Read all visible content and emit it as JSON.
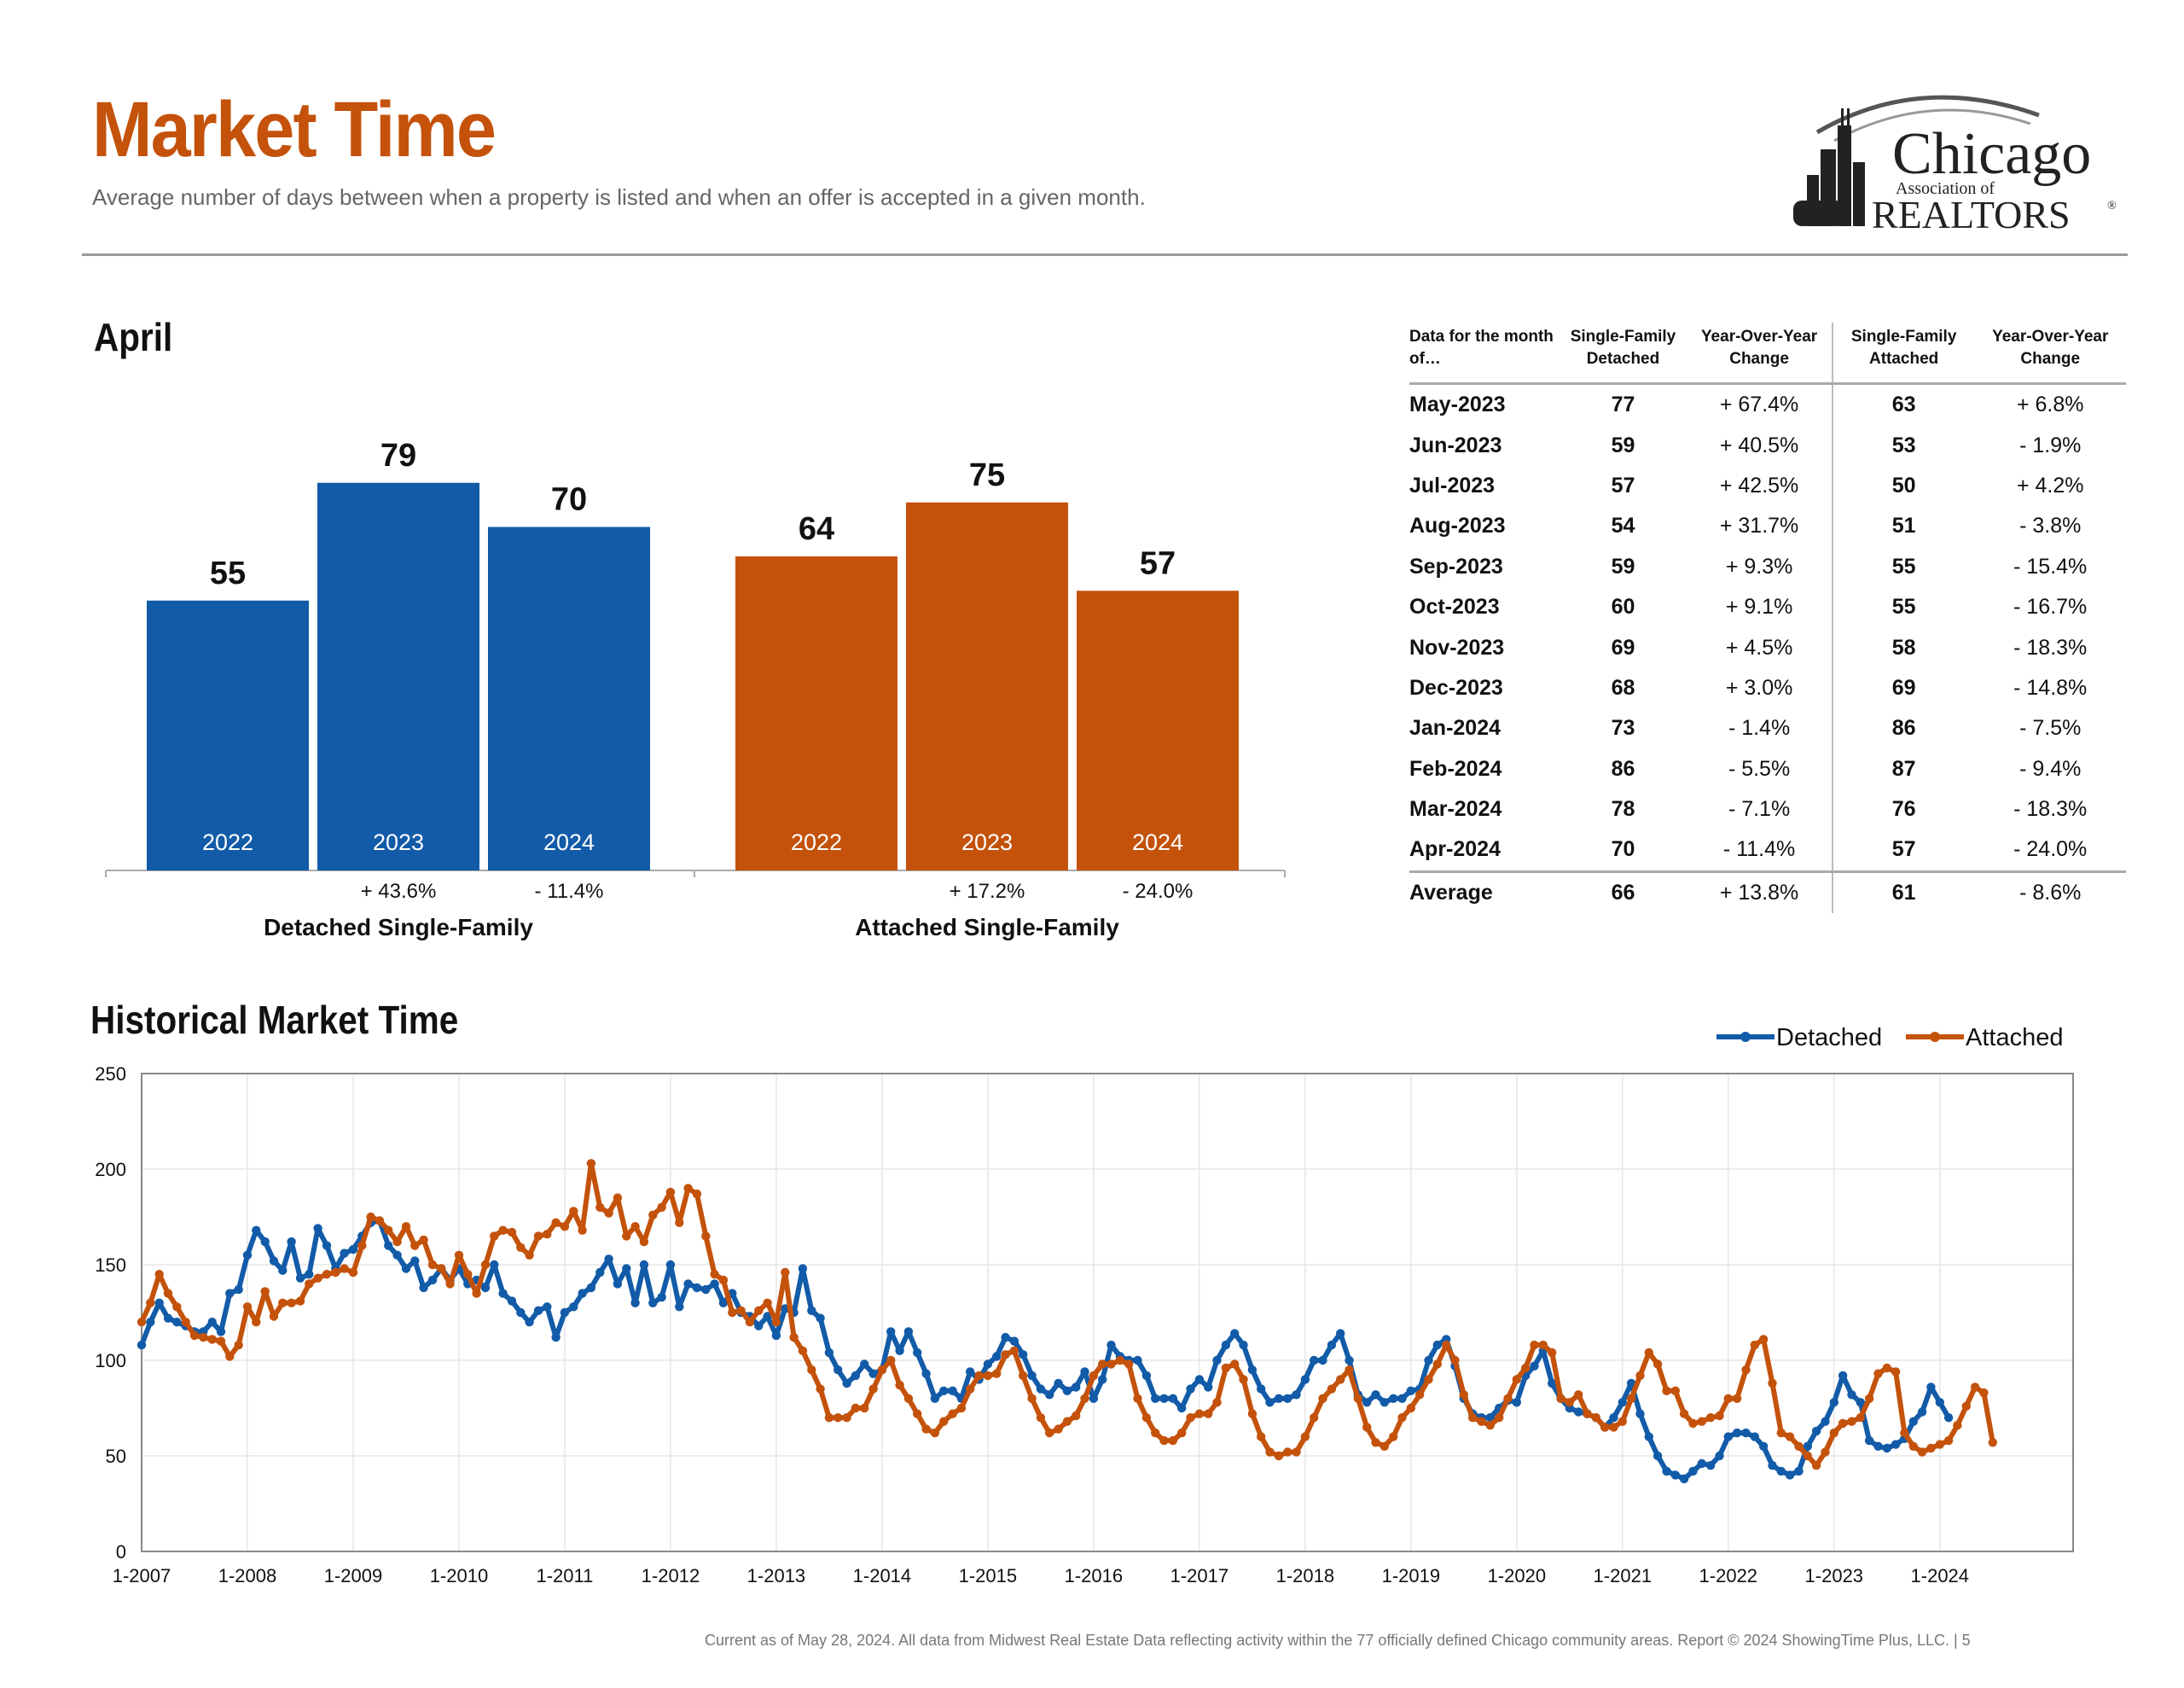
{
  "header": {
    "title": "Market Time",
    "subtitle": "Average number of days between when a property is listed and when an offer is accepted in a given month.",
    "logo_line1": "Chicago",
    "logo_line2": "Association of",
    "logo_line3": "REALTORS",
    "logo_mark": "®"
  },
  "april_heading": "April",
  "historical_heading": "Historical Market Time",
  "colors": {
    "detached": "#125ba8",
    "attached": "#c4520b",
    "title": "#c4520b"
  },
  "chart_data": [
    {
      "type": "bar",
      "groups": [
        {
          "name": "Detached Single-Family",
          "years": [
            "2022",
            "2023",
            "2024"
          ],
          "values": [
            55,
            79,
            70
          ],
          "changes": [
            "",
            "+ 43.6%",
            "- 11.4%"
          ]
        },
        {
          "name": "Attached Single-Family",
          "years": [
            "2022",
            "2023",
            "2024"
          ],
          "values": [
            64,
            75,
            57
          ],
          "changes": [
            "",
            "+ 17.2%",
            "- 24.0%"
          ]
        }
      ],
      "ylim": [
        0,
        100
      ]
    },
    {
      "type": "table",
      "columns": [
        "Data for the month of…",
        "Single-Family Detached",
        "Year-Over-Year Change",
        "Single-Family Attached",
        "Year-Over-Year Change"
      ],
      "rows": [
        [
          "May-2023",
          "77",
          "+ 67.4%",
          "63",
          "+ 6.8%"
        ],
        [
          "Jun-2023",
          "59",
          "+ 40.5%",
          "53",
          "- 1.9%"
        ],
        [
          "Jul-2023",
          "57",
          "+ 42.5%",
          "50",
          "+ 4.2%"
        ],
        [
          "Aug-2023",
          "54",
          "+ 31.7%",
          "51",
          "- 3.8%"
        ],
        [
          "Sep-2023",
          "59",
          "+ 9.3%",
          "55",
          "- 15.4%"
        ],
        [
          "Oct-2023",
          "60",
          "+ 9.1%",
          "55",
          "- 16.7%"
        ],
        [
          "Nov-2023",
          "69",
          "+ 4.5%",
          "58",
          "- 18.3%"
        ],
        [
          "Dec-2023",
          "68",
          "+ 3.0%",
          "69",
          "- 14.8%"
        ],
        [
          "Jan-2024",
          "73",
          "- 1.4%",
          "86",
          "- 7.5%"
        ],
        [
          "Feb-2024",
          "86",
          "- 5.5%",
          "87",
          "- 9.4%"
        ],
        [
          "Mar-2024",
          "78",
          "- 7.1%",
          "76",
          "- 18.3%"
        ],
        [
          "Apr-2024",
          "70",
          "- 11.4%",
          "57",
          "- 24.0%"
        ]
      ],
      "average": [
        "Average",
        "66",
        "+ 13.8%",
        "61",
        "- 8.6%"
      ]
    },
    {
      "type": "line",
      "x_start": "1-2007",
      "x_ticks": [
        "1-2007",
        "1-2008",
        "1-2009",
        "1-2010",
        "1-2011",
        "1-2012",
        "1-2013",
        "1-2014",
        "1-2015",
        "1-2016",
        "1-2017",
        "1-2018",
        "1-2019",
        "1-2020",
        "1-2021",
        "1-2022",
        "1-2023",
        "1-2024"
      ],
      "y_ticks": [
        0,
        50,
        100,
        150,
        200,
        250
      ],
      "ylim": [
        0,
        250
      ],
      "legend_position": "top-right",
      "series": [
        {
          "name": "Detached",
          "values": [
            108,
            120,
            130,
            122,
            120,
            118,
            115,
            115,
            120,
            115,
            135,
            137,
            155,
            168,
            162,
            152,
            147,
            162,
            143,
            145,
            169,
            160,
            148,
            156,
            158,
            165,
            172,
            173,
            160,
            155,
            148,
            152,
            138,
            142,
            148,
            142,
            148,
            140,
            142,
            138,
            150,
            135,
            131,
            125,
            120,
            126,
            128,
            112,
            125,
            128,
            135,
            138,
            146,
            153,
            140,
            148,
            130,
            150,
            130,
            133,
            150,
            128,
            140,
            138,
            137,
            140,
            130,
            135,
            125,
            123,
            118,
            123,
            113,
            127,
            125,
            148,
            126,
            122,
            104,
            95,
            88,
            92,
            98,
            93,
            95,
            115,
            105,
            115,
            104,
            93,
            80,
            84,
            84,
            80,
            94,
            90,
            98,
            102,
            112,
            110,
            103,
            92,
            85,
            82,
            88,
            84,
            86,
            94,
            80,
            90,
            108,
            102,
            100,
            100,
            92,
            80,
            80,
            80,
            75,
            85,
            90,
            86,
            100,
            108,
            114,
            108,
            95,
            85,
            78,
            80,
            80,
            82,
            90,
            100,
            100,
            108,
            114,
            100,
            82,
            78,
            82,
            78,
            80,
            80,
            84,
            85,
            100,
            108,
            111,
            97,
            80,
            72,
            70,
            70,
            75,
            79,
            78,
            92,
            97,
            105,
            88,
            80,
            75,
            73,
            72,
            70,
            65,
            70,
            78,
            88,
            72,
            60,
            50,
            42,
            40,
            38,
            42,
            46,
            45,
            50,
            60,
            62,
            62,
            60,
            55,
            45,
            42,
            40,
            42,
            55,
            63,
            68,
            78,
            92,
            82,
            78,
            58,
            55,
            54,
            56,
            59,
            68,
            73,
            86,
            78,
            70
          ]
        },
        {
          "name": "Attached",
          "values": [
            120,
            130,
            145,
            135,
            128,
            120,
            113,
            112,
            111,
            110,
            102,
            108,
            128,
            120,
            136,
            123,
            130,
            130,
            131,
            140,
            143,
            145,
            146,
            148,
            146,
            160,
            175,
            173,
            168,
            162,
            170,
            160,
            163,
            150,
            148,
            140,
            155,
            145,
            135,
            150,
            165,
            168,
            167,
            159,
            155,
            165,
            166,
            172,
            170,
            178,
            168,
            203,
            180,
            177,
            185,
            165,
            170,
            162,
            176,
            180,
            188,
            172,
            190,
            187,
            165,
            145,
            142,
            125,
            126,
            120,
            126,
            130,
            120,
            146,
            112,
            105,
            95,
            85,
            70,
            70,
            70,
            75,
            75,
            85,
            95,
            100,
            87,
            80,
            72,
            64,
            62,
            68,
            72,
            75,
            85,
            92,
            92,
            93,
            103,
            105,
            92,
            80,
            70,
            62,
            64,
            68,
            71,
            80,
            92,
            98,
            98,
            100,
            98,
            80,
            70,
            62,
            58,
            58,
            62,
            70,
            72,
            72,
            78,
            96,
            98,
            90,
            72,
            60,
            52,
            50,
            52,
            52,
            60,
            70,
            80,
            85,
            90,
            95,
            80,
            65,
            57,
            55,
            60,
            70,
            75,
            82,
            90,
            98,
            108,
            100,
            82,
            70,
            68,
            66,
            70,
            80,
            90,
            96,
            108,
            108,
            104,
            80,
            78,
            82,
            72,
            70,
            65,
            65,
            68,
            80,
            92,
            104,
            98,
            84,
            84,
            72,
            67,
            68,
            70,
            71,
            80,
            80,
            95,
            108,
            111,
            88,
            62,
            60,
            55,
            50,
            45,
            52,
            62,
            67,
            68,
            70,
            80,
            93,
            96,
            94,
            62,
            55,
            52,
            54,
            56,
            58,
            66,
            76,
            86,
            83,
            57
          ]
        }
      ]
    }
  ],
  "footer": "Current as of May 28, 2024.  All data from Midwest Real Estate Data reflecting activity within the 77 officially defined Chicago community areas. Report © 2024 ShowingTime Plus, LLC.  |  5"
}
